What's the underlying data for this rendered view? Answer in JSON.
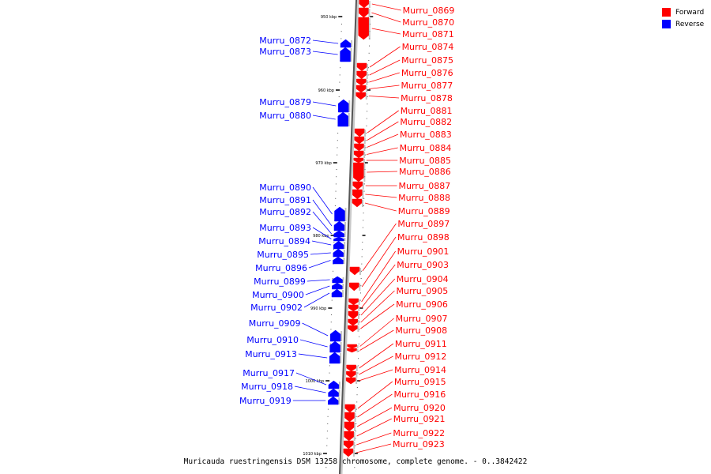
{
  "legend": {
    "forward_label": "Forward",
    "reverse_label": "Reverse",
    "forward_color": "#ff0000",
    "reverse_color": "#0000ff"
  },
  "caption": "Muricauda ruestringensis DSM 13258 chromosome, complete genome. - 0..3842422",
  "axis_ticks": [
    "950 kbp",
    "960 kbp",
    "970 kbp",
    "980 kbp",
    "990 kbp",
    "1000 kbp",
    "1010 kbp"
  ],
  "forward_genes": [
    "Murru_0869",
    "Murru_0870",
    "Murru_0871",
    "Murru_0874",
    "Murru_0875",
    "Murru_0876",
    "Murru_0877",
    "Murru_0878",
    "Murru_0881",
    "Murru_0882",
    "Murru_0883",
    "Murru_0884",
    "Murru_0885",
    "Murru_0886",
    "Murru_0887",
    "Murru_0888",
    "Murru_0889",
    "Murru_0897",
    "Murru_0898",
    "Murru_0901",
    "Murru_0903",
    "Murru_0904",
    "Murru_0905",
    "Murru_0906",
    "Murru_0907",
    "Murru_0908",
    "Murru_0911",
    "Murru_0912",
    "Murru_0914",
    "Murru_0915",
    "Murru_0916",
    "Murru_0920",
    "Murru_0921",
    "Murru_0922",
    "Murru_0923"
  ],
  "reverse_genes": [
    "Murru_0872",
    "Murru_0873",
    "Murru_0879",
    "Murru_0880",
    "Murru_0890",
    "Murru_0891",
    "Murru_0892",
    "Murru_0893",
    "Murru_0894",
    "Murru_0895",
    "Murru_0896",
    "Murru_0899",
    "Murru_0900",
    "Murru_0902",
    "Murru_0909",
    "Murru_0910",
    "Murru_0913",
    "Murru_0917",
    "Murru_0918",
    "Murru_0919"
  ]
}
